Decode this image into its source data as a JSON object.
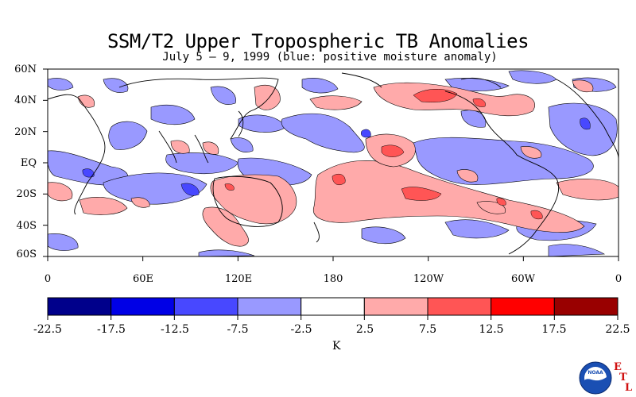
{
  "title": "SSM/T2 Upper Tropospheric TB Anomalies",
  "subtitle": "July 5 – 9, 1999 (blue: positive moisture anomaly)",
  "y_ticks": [
    "60N",
    "40N",
    "20N",
    "EQ",
    "20S",
    "40S",
    "60S"
  ],
  "x_ticks": [
    "0",
    "60E",
    "120E",
    "180",
    "120W",
    "60W",
    "0"
  ],
  "colorbar": {
    "labels": [
      "-22.5",
      "-17.5",
      "-12.5",
      "-7.5",
      "-2.5",
      "2.5",
      "7.5",
      "12.5",
      "17.5",
      "22.5"
    ],
    "colors": [
      "#00008b",
      "#0000e6",
      "#4848ff",
      "#9999ff",
      "#ffffff",
      "#ffaaaa",
      "#ff5555",
      "#ff0000",
      "#990000"
    ],
    "unit": "K"
  },
  "logo": {
    "agency": "NOAA",
    "lab_letters": [
      "E",
      "T",
      "L"
    ]
  },
  "colors": {
    "light_blue": "#9999ff",
    "mid_blue": "#4848ff",
    "light_red": "#ffaaaa",
    "mid_red": "#ff5555"
  }
}
